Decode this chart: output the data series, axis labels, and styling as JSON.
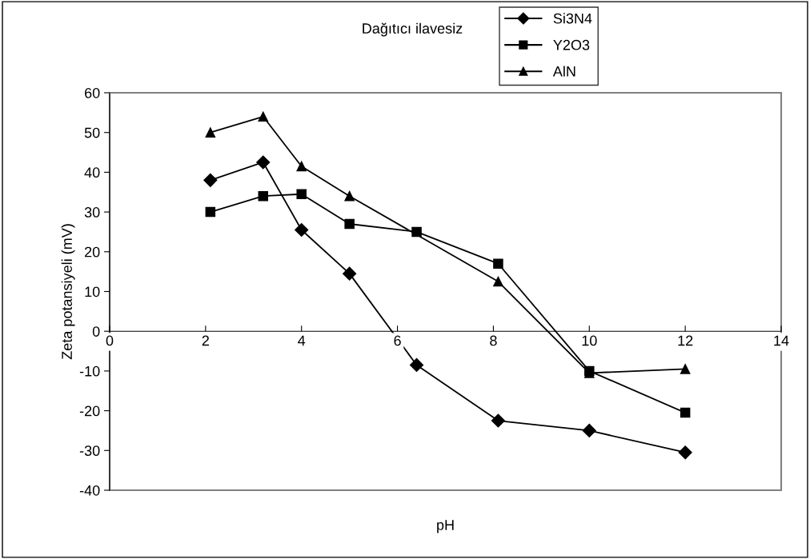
{
  "chart_data": {
    "type": "line",
    "title": "Dağıtıcı ilavesiz",
    "xlabel": "pH",
    "ylabel": "Zeta potansiyeli (mV)",
    "x": [
      2.1,
      3.2,
      4,
      5,
      6.4,
      8.1,
      10,
      12
    ],
    "series": [
      {
        "name": "Si3N4",
        "color": "#000000",
        "marker": "diamond",
        "values": [
          38,
          42.5,
          25.5,
          14.5,
          -8.5,
          -22.5,
          -25,
          -30.5
        ]
      },
      {
        "name": "Y2O3",
        "color": "#000000",
        "marker": "square",
        "values": [
          30,
          34,
          34.5,
          27,
          25,
          17,
          -10,
          -20.5
        ]
      },
      {
        "name": "AlN",
        "color": "#000000",
        "marker": "triangle",
        "values": [
          50,
          54,
          41.5,
          34,
          null,
          12.5,
          -10.5,
          -9.5
        ]
      }
    ],
    "xlim": [
      0,
      14
    ],
    "xticks": [
      0,
      2,
      4,
      6,
      8,
      10,
      12,
      14
    ],
    "ylim": [
      -40,
      60
    ],
    "yticks": [
      -40,
      -30,
      -20,
      -10,
      0,
      10,
      20,
      30,
      40,
      50,
      60
    ],
    "grid": false,
    "legend": "top right",
    "line_style": "solid"
  }
}
